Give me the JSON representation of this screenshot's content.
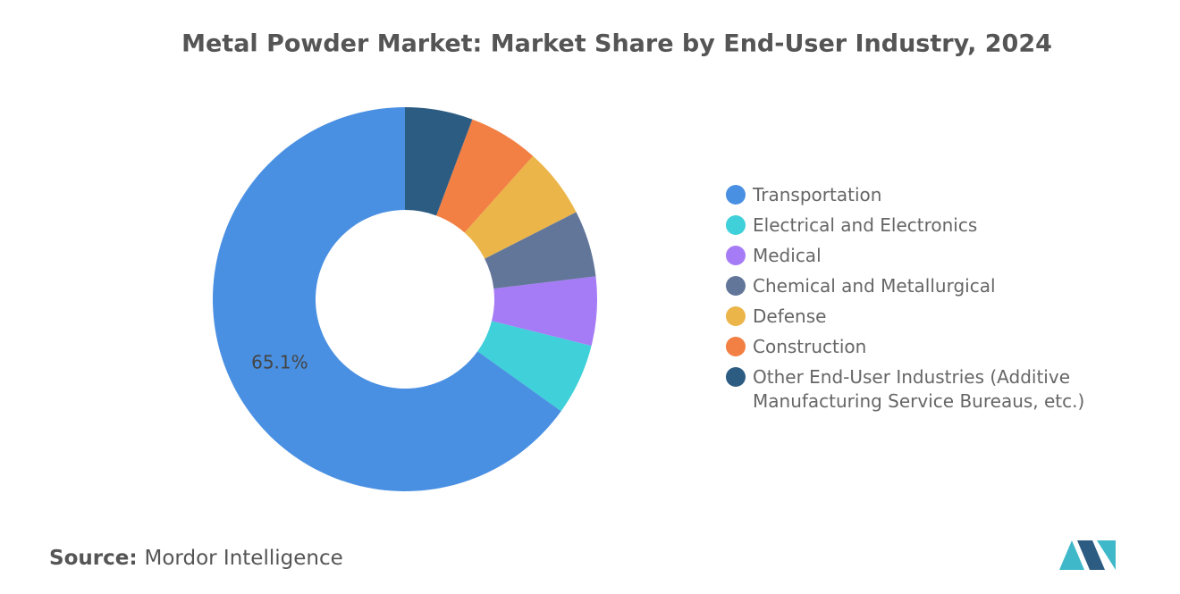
{
  "chart_data": {
    "type": "donut",
    "title": "Metal Powder Market: Market Share by End-User Industry, 2024",
    "categories": [
      "Transportation",
      "Electrical and Electronics",
      "Medical",
      "Chemical and Metallurgical",
      "Defense",
      "Construction",
      "Other End-User Industries (Additive Manufacturing Service Bureaus, etc.)"
    ],
    "values": [
      65.1,
      6.0,
      5.8,
      5.6,
      5.9,
      5.9,
      5.7
    ],
    "value_labels": [
      "65.1%",
      null,
      null,
      null,
      null,
      null,
      null
    ],
    "colors": [
      "#4a90e2",
      "#3fd0d9",
      "#a57cf5",
      "#62769a",
      "#ebb54a",
      "#f27f43",
      "#2d5c82"
    ]
  },
  "source": {
    "label": "Source:",
    "text": "Mordor Intelligence"
  }
}
